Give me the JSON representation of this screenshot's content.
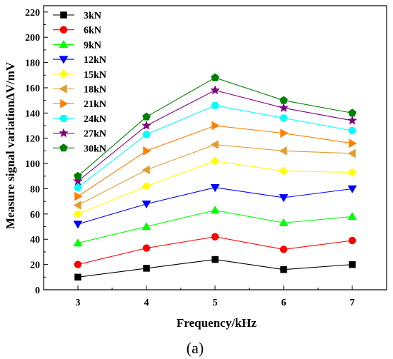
{
  "chart_data": {
    "type": "line",
    "xlabel": "Frequency/kHz",
    "ylabel": "Measure signal variationΔV/mV",
    "caption": "(a)",
    "x": [
      3,
      4,
      5,
      6,
      7
    ],
    "xlim": [
      2.5,
      7.5
    ],
    "ylim": [
      0,
      225
    ],
    "yticks": [
      0,
      20,
      40,
      60,
      80,
      100,
      120,
      140,
      160,
      180,
      200,
      220
    ],
    "legend_position": "top-left",
    "grid": false,
    "series": [
      {
        "name": "3kN",
        "color": "#000000",
        "marker": "square",
        "values": [
          10,
          17,
          24,
          16,
          20
        ]
      },
      {
        "name": "6kN",
        "color": "#ff0000",
        "marker": "circle",
        "values": [
          20,
          33,
          42,
          32,
          39
        ]
      },
      {
        "name": "9kN",
        "color": "#00ff00",
        "marker": "triangle-up",
        "values": [
          37,
          50,
          63,
          53,
          58
        ]
      },
      {
        "name": "12kN",
        "color": "#0000ff",
        "marker": "triangle-down",
        "values": [
          52,
          68,
          81,
          73,
          80
        ]
      },
      {
        "name": "15kN",
        "color": "#ffff00",
        "marker": "diamond",
        "values": [
          60,
          82,
          102,
          94,
          93
        ]
      },
      {
        "name": "18kN",
        "color": "#e0a030",
        "marker": "triangle-left",
        "values": [
          67,
          95,
          115,
          110,
          108
        ]
      },
      {
        "name": "21kN",
        "color": "#ff8000",
        "marker": "triangle-right",
        "values": [
          74,
          110,
          130,
          124,
          116
        ]
      },
      {
        "name": "24kN",
        "color": "#00ffff",
        "marker": "hexagon",
        "values": [
          81,
          123,
          146,
          136,
          126
        ]
      },
      {
        "name": "27kN",
        "color": "#800080",
        "marker": "star",
        "values": [
          86,
          130,
          158,
          144,
          134
        ]
      },
      {
        "name": "30kN",
        "color": "#008000",
        "marker": "pentagon",
        "values": [
          90,
          137,
          168,
          150,
          140
        ]
      }
    ]
  }
}
